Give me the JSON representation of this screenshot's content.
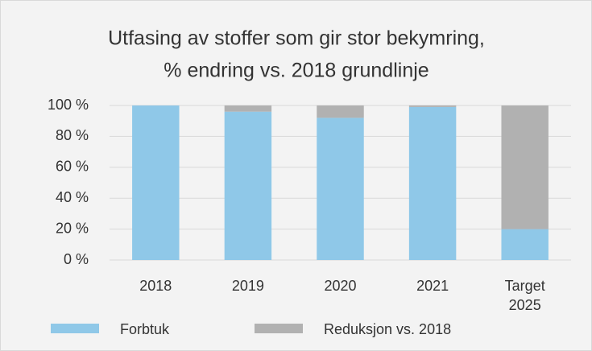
{
  "chart_data": {
    "type": "stacked_bar",
    "title": [
      "Utfasing av stoffer som gir stor bekymring,",
      "% endring vs. 2018 grundlinje"
    ],
    "categories": [
      "2018",
      "2019",
      "2020",
      "2021",
      "Target 2025"
    ],
    "series": [
      {
        "name": "Forbtuk",
        "color": "#8fc8e8",
        "values": [
          100,
          96,
          92,
          99,
          20
        ]
      },
      {
        "name": "Reduksjon vs. 2018",
        "color": "#b1b1b1",
        "values": [
          0,
          4,
          8,
          1,
          80
        ]
      }
    ],
    "ylim": [
      0,
      100
    ],
    "yticks": [
      {
        "value": 0,
        "label": "0 %"
      },
      {
        "value": 20,
        "label": "20 %"
      },
      {
        "value": 40,
        "label": "40 %"
      },
      {
        "value": 60,
        "label": "60 %"
      },
      {
        "value": 80,
        "label": "80 %"
      },
      {
        "value": 100,
        "label": "100 %"
      }
    ],
    "grid": true,
    "legend": "bottom"
  }
}
